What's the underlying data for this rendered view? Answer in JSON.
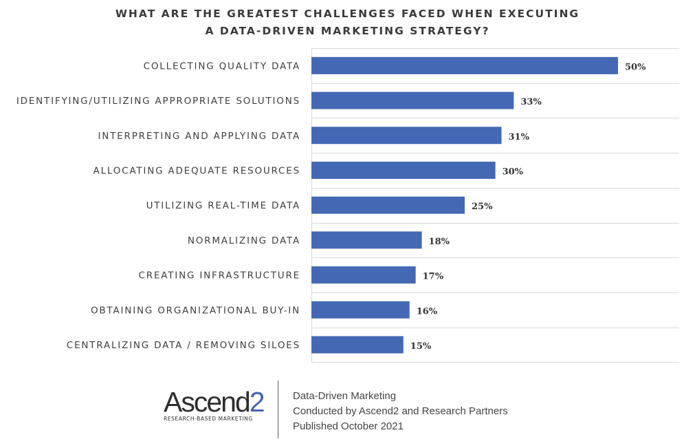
{
  "chart_data": {
    "type": "bar",
    "orientation": "horizontal",
    "title_lines": [
      "WHAT ARE THE GREATEST CHALLENGES FACED WHEN EXECUTING",
      "A DATA-DRIVEN MARKETING STRATEGY?"
    ],
    "categories": [
      "COLLECTING QUALITY DATA",
      "IDENTIFYING/UTILIZING APPROPRIATE SOLUTIONS",
      "INTERPRETING AND APPLYING DATA",
      "ALLOCATING ADEQUATE RESOURCES",
      "UTILIZING REAL-TIME DATA",
      "NORMALIZING DATA",
      "CREATING INFRASTRUCTURE",
      "OBTAINING ORGANIZATIONAL BUY-IN",
      "CENTRALIZING DATA / REMOVING SILOES"
    ],
    "values": [
      50,
      33,
      31,
      30,
      25,
      18,
      17,
      16,
      15
    ],
    "value_labels": [
      "50%",
      "33%",
      "31%",
      "30%",
      "25%",
      "18%",
      "17%",
      "16%",
      "15%"
    ],
    "unit": "%",
    "grid": true,
    "bar_color": "#4468b3"
  },
  "footer": {
    "logo_text": "Ascend",
    "logo_digit": "2",
    "logo_tagline": "RESEARCH-BASED MARKETING",
    "lines": [
      "Data-Driven Marketing",
      "Conducted by Ascend2 and Research Partners",
      "Published October 2021"
    ]
  }
}
